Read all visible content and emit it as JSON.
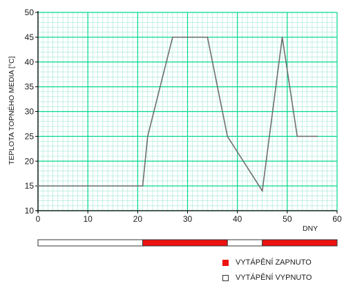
{
  "chart_data": {
    "type": "line",
    "xlabel": "DNY",
    "ylabel": "TEPLOTA TOPNÉHO MEDIA [°C]",
    "xlim": [
      0,
      60
    ],
    "ylim": [
      10,
      50
    ],
    "x_ticks": [
      0,
      10,
      20,
      30,
      40,
      50,
      60
    ],
    "y_ticks": [
      10,
      15,
      20,
      25,
      30,
      35,
      40,
      45,
      50
    ],
    "grid": true,
    "series": [
      {
        "x": [
          0,
          21,
          22,
          27,
          34,
          38,
          45,
          49,
          52,
          56
        ],
        "y": [
          15,
          15,
          25,
          45,
          45,
          25,
          14,
          45,
          25,
          25
        ]
      }
    ],
    "heating_bar": [
      {
        "start": 0,
        "end": 21,
        "state": "off"
      },
      {
        "start": 21,
        "end": 38,
        "state": "on"
      },
      {
        "start": 38,
        "end": 45,
        "state": "off"
      },
      {
        "start": 45,
        "end": 60,
        "state": "on"
      }
    ],
    "legend": [
      {
        "label": "VYTÁPĚNÍ ZAPNUTO",
        "state": "on"
      },
      {
        "label": "VYTÁPĚNÍ VYPNUTO",
        "state": "off"
      }
    ],
    "colors": {
      "grid_major": "#00d98c",
      "grid_minor": "#9fe8d6",
      "line": "#6e6e6e",
      "on": "#ee1111",
      "off": "#ffffff",
      "axis": "#000000"
    }
  }
}
